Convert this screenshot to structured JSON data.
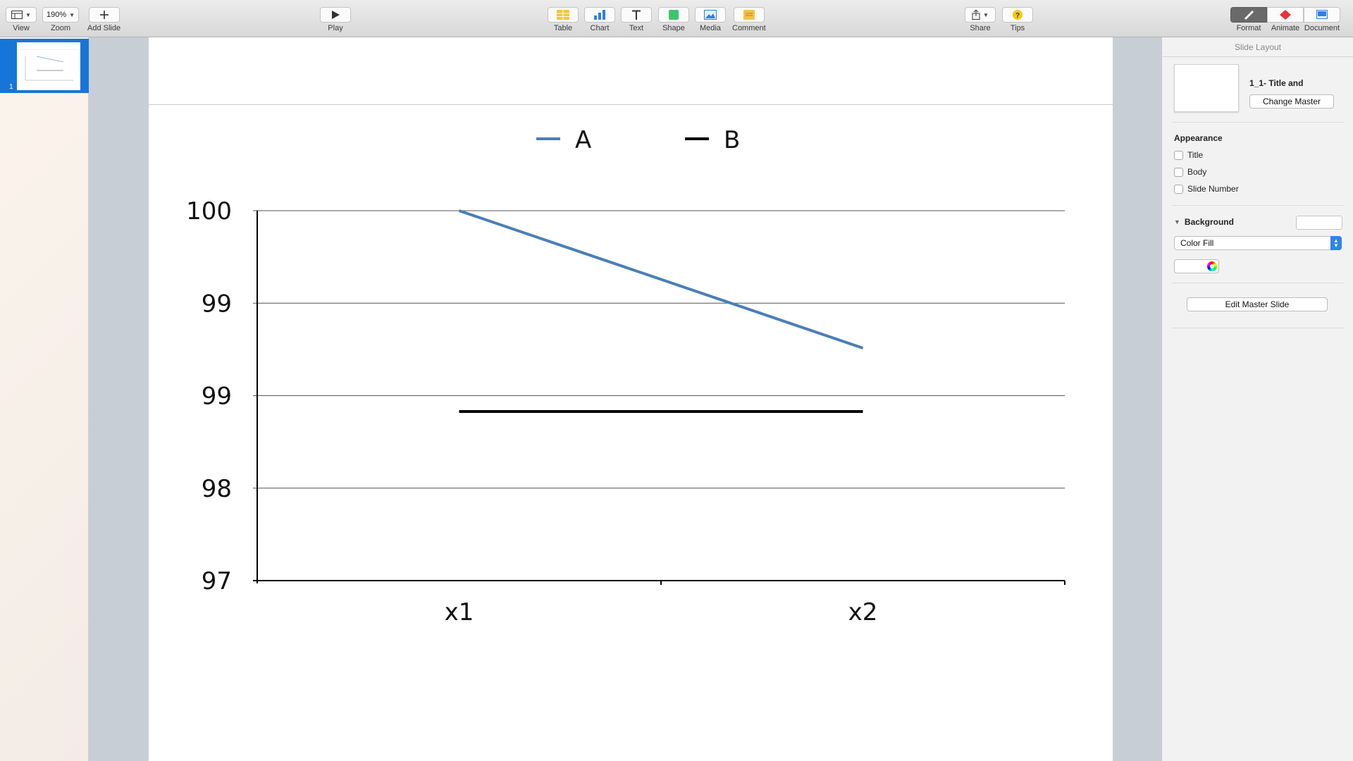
{
  "toolbar": {
    "view": {
      "label": "View"
    },
    "zoom": {
      "label": "Zoom",
      "value": "190%"
    },
    "add_slide": {
      "label": "Add Slide"
    },
    "play": {
      "label": "Play"
    },
    "table": {
      "label": "Table"
    },
    "chart": {
      "label": "Chart"
    },
    "text": {
      "label": "Text"
    },
    "shape": {
      "label": "Shape"
    },
    "media": {
      "label": "Media"
    },
    "comment": {
      "label": "Comment"
    },
    "share": {
      "label": "Share"
    },
    "tips": {
      "label": "Tips"
    },
    "format": {
      "label": "Format"
    },
    "animate": {
      "label": "Animate"
    },
    "document": {
      "label": "Document"
    }
  },
  "navigator": {
    "slides": [
      {
        "number": "1"
      }
    ]
  },
  "inspector": {
    "header": "Slide Layout",
    "layout_name": "1_1- Title and",
    "change_master": "Change Master",
    "appearance": {
      "title": "Appearance",
      "options": [
        {
          "label": "Title",
          "checked": false
        },
        {
          "label": "Body",
          "checked": false
        },
        {
          "label": "Slide Number",
          "checked": false
        }
      ]
    },
    "background": {
      "title": "Background",
      "fill_type": "Color Fill"
    },
    "edit_master": "Edit Master Slide"
  },
  "colors": {
    "series_a": "#4a7fb7",
    "series_b": "#000000",
    "accent": "#1675d9"
  },
  "chart_data": {
    "type": "line",
    "categories": [
      "x1",
      "x2"
    ],
    "series": [
      {
        "name": "A",
        "values": [
          99.25,
          98.6
        ]
      },
      {
        "name": "B",
        "values": [
          98.3,
          98.3
        ]
      }
    ],
    "y_tick_labels": [
      "97",
      "98",
      "99",
      "99",
      "100"
    ],
    "ylim": [
      97.5,
      99.25
    ],
    "grid": true,
    "legend": "top-center"
  }
}
